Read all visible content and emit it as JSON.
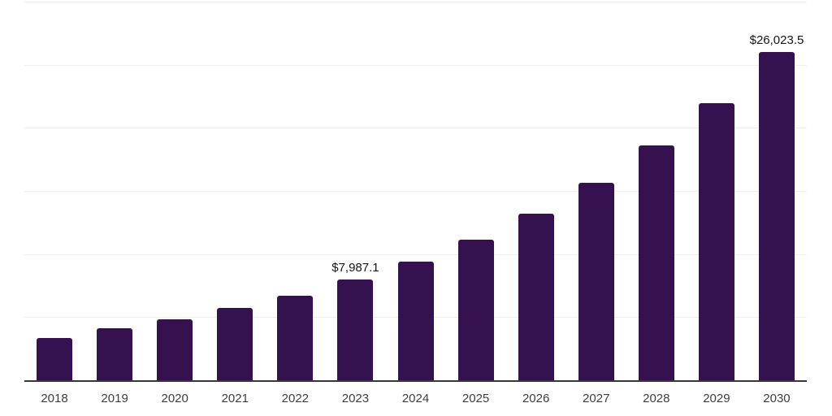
{
  "chart_data": {
    "type": "bar",
    "title": "",
    "xlabel": "",
    "ylabel": "",
    "categories": [
      "2018",
      "2019",
      "2020",
      "2021",
      "2022",
      "2023",
      "2024",
      "2025",
      "2026",
      "2027",
      "2028",
      "2029",
      "2030"
    ],
    "values": [
      3350,
      4100,
      4800,
      5700,
      6700,
      7987.1,
      9420,
      11150,
      13170,
      15640,
      18590,
      21950,
      26023.5
    ],
    "data_labels": {
      "2023": "$7,987.1",
      "2030": "$26,023.5"
    },
    "ylim": [
      0,
      30000
    ],
    "grid_interval": 5000,
    "grid": "horizontal",
    "legend": "none",
    "y_tick_labels_shown": false,
    "colors": {
      "bar": "#36114F",
      "gridline": "#efefef",
      "axis_line": "#373737",
      "x_tick_label": "#3d3d3d",
      "data_label": "#141414",
      "background": "#ffffff"
    }
  }
}
